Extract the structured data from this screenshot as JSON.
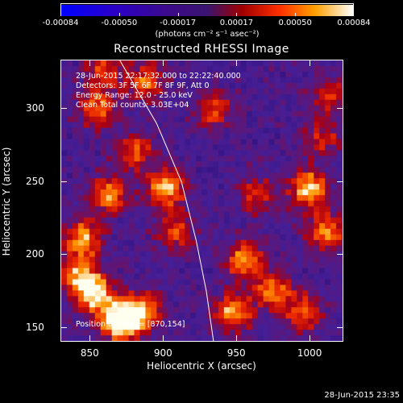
{
  "colorbar": {
    "ticks": [
      "-0.00084",
      "-0.00050",
      "-0.00017",
      "0.00017",
      "0.00050",
      "0.00084"
    ],
    "unit": "(photons cm⁻² s⁻¹ asec⁻²)"
  },
  "title": "Reconstructed RHESSI Image",
  "info_lines": [
    "28-Jun-2015 22:17:32.000 to 22:22:40.000",
    "Detectors: 3F 5F 6F 7F 8F 9F, Att 0",
    "Energy Range: 12.0 - 25.0 keV",
    "Clean    Total counts: 3.03E+04"
  ],
  "peak_label": "Position of Peak = [870,154]",
  "chart_data": {
    "type": "heatmap",
    "title": "Reconstructed RHESSI Image",
    "xlabel": "Heliocentric X (arcsec)",
    "ylabel": "Heliocentric Y (arcsec)",
    "x_ticks": [
      "850",
      "900",
      "950",
      "1000"
    ],
    "y_ticks": [
      "150",
      "200",
      "250",
      "300"
    ],
    "xlim": [
      830,
      1023
    ],
    "ylim": [
      140,
      333
    ],
    "color_range": [
      -0.00084,
      0.00084
    ],
    "peak_position": [
      870,
      154
    ],
    "limb_curve": [
      [
        870,
        333
      ],
      [
        895,
        290
      ],
      [
        912,
        250
      ],
      [
        922,
        210
      ],
      [
        929,
        175
      ],
      [
        934,
        140
      ]
    ],
    "bright_sources": [
      {
        "x": 870,
        "y": 154,
        "strength": 1.0
      },
      {
        "x": 853,
        "y": 172,
        "strength": 0.8
      },
      {
        "x": 885,
        "y": 160,
        "strength": 0.7
      },
      {
        "x": 845,
        "y": 210,
        "strength": 0.65
      },
      {
        "x": 862,
        "y": 240,
        "strength": 0.6
      },
      {
        "x": 855,
        "y": 300,
        "strength": 0.55
      },
      {
        "x": 880,
        "y": 270,
        "strength": 0.5
      },
      {
        "x": 902,
        "y": 245,
        "strength": 0.7
      },
      {
        "x": 908,
        "y": 215,
        "strength": 0.45
      },
      {
        "x": 888,
        "y": 318,
        "strength": 0.5
      },
      {
        "x": 860,
        "y": 327,
        "strength": 0.45
      },
      {
        "x": 935,
        "y": 300,
        "strength": 0.45
      },
      {
        "x": 955,
        "y": 195,
        "strength": 0.6
      },
      {
        "x": 948,
        "y": 160,
        "strength": 0.65
      },
      {
        "x": 975,
        "y": 175,
        "strength": 0.55
      },
      {
        "x": 1000,
        "y": 245,
        "strength": 0.75
      },
      {
        "x": 1012,
        "y": 215,
        "strength": 0.6
      },
      {
        "x": 965,
        "y": 240,
        "strength": 0.4
      },
      {
        "x": 995,
        "y": 160,
        "strength": 0.5
      },
      {
        "x": 1015,
        "y": 310,
        "strength": 0.4
      },
      {
        "x": 1010,
        "y": 280,
        "strength": 0.35
      },
      {
        "x": 842,
        "y": 185,
        "strength": 0.6
      }
    ]
  },
  "timestamp": "28-Jun-2015 23:35"
}
